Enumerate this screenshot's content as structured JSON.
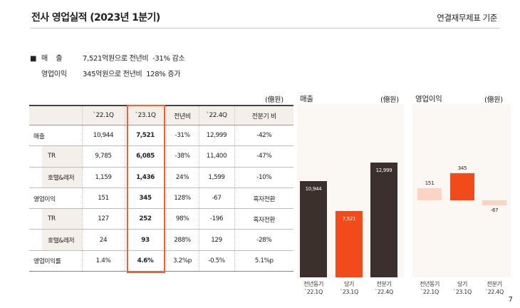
{
  "header": {
    "title": "전사 영업실적 (2023년 1분기)",
    "basis": "연결재무제표 기준"
  },
  "summary": [
    {
      "bullet": "■",
      "label": "매    출",
      "value": "7,521억원으로 전년비  -31% 감소"
    },
    {
      "bullet": "",
      "label": "영업이익",
      "value": "345억원으로 전년비  128% 증가"
    }
  ],
  "table": {
    "unit": "(億원)",
    "columns": [
      "`22.1Q",
      "`23.1Q",
      "전년비",
      "`22.4Q",
      "전분기 비"
    ],
    "rows": [
      {
        "label": "매출",
        "indent": false,
        "values": [
          "10,944",
          "7,521",
          "-31%",
          "12,999",
          "-42%"
        ]
      },
      {
        "label": "TR",
        "indent": true,
        "values": [
          "9,785",
          "6,085",
          "-38%",
          "11,400",
          "-47%"
        ]
      },
      {
        "label": "호텔&레저",
        "indent": true,
        "values": [
          "1,159",
          "1,436",
          "24%",
          "1,599",
          "-10%"
        ]
      },
      {
        "label": "영업이익",
        "indent": false,
        "values": [
          "151",
          "345",
          "128%",
          "-67",
          "흑자전환"
        ]
      },
      {
        "label": "TR",
        "indent": true,
        "values": [
          "127",
          "252",
          "98%",
          "-196",
          "흑자전환"
        ]
      },
      {
        "label": "호텔&레저",
        "indent": true,
        "values": [
          "24",
          "93",
          "288%",
          "129",
          "-28%"
        ]
      },
      {
        "label": "영업이익률",
        "indent": false,
        "values": [
          "1.4%",
          "4.6%",
          "3.2%p",
          "-0.5%",
          "5.1%p"
        ]
      }
    ]
  },
  "chart_data": [
    {
      "type": "bar",
      "title": "매출",
      "unit": "(億원)",
      "categories": [
        [
          "전년동기",
          "`22.1Q"
        ],
        [
          "당기",
          "`23.1Q"
        ],
        [
          "전분기",
          "`22.4Q"
        ]
      ],
      "values": [
        10944,
        7521,
        12999
      ],
      "value_labels": [
        "10,944",
        "7,521",
        "12,999"
      ],
      "colors": [
        "#3b302c",
        "#f24a1b",
        "#3b302c"
      ],
      "label_color": "#ffffff"
    },
    {
      "type": "bar",
      "title": "영업이익",
      "unit": "(億원)",
      "categories": [
        [
          "전년동기",
          "`22.1Q"
        ],
        [
          "당기",
          "`23.1Q"
        ],
        [
          "전분기",
          "`22.4Q"
        ]
      ],
      "values": [
        151,
        345,
        -67
      ],
      "value_labels": [
        "151",
        "345",
        "-67"
      ],
      "colors": [
        "#fbd4c3",
        "#f24a1b",
        "#fbd4c3"
      ],
      "label_color": "#222222"
    }
  ],
  "page_number": "7"
}
